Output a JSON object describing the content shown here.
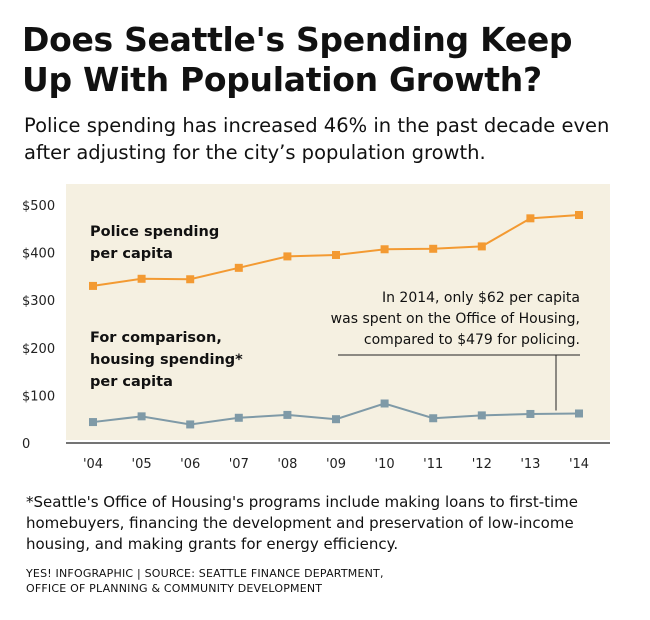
{
  "title": "Does Seattle's Spending Keep Up With Population Growth?",
  "subtitle": "Police spending has increased 46% in the past decade even after adjusting for the city’s population growth.",
  "footnote": "*Seattle's Office of Housing's programs include making loans to first-time homebuyers, financing the development and preservation of low-income housing, and making grants for energy efficiency.",
  "source_line1": "YES! INFOGRAPHIC | SOURCE: SEATTLE FINANCE DEPARTMENT,",
  "source_line2": "OFFICE OF PLANNING & COMMUNITY DEVELOPMENT",
  "colors": {
    "plot_background": "#f5f0e1",
    "police": "#f39a32",
    "housing": "#7f9aa7"
  },
  "chart_data": {
    "type": "line",
    "categories": [
      "'04",
      "'05",
      "'06",
      "'07",
      "'08",
      "'09",
      "'10",
      "'11",
      "'12",
      "'13",
      "'14"
    ],
    "ytick_labels": [
      "$500",
      "$400",
      "$300",
      "$200",
      "$100",
      "0"
    ],
    "yticks": [
      500,
      400,
      300,
      200,
      100,
      0
    ],
    "ylim": [
      0,
      500
    ],
    "series": [
      {
        "key": "police",
        "label_lines": [
          "Police spending",
          "per capita"
        ],
        "values": [
          330,
          345,
          344,
          368,
          392,
          395,
          407,
          408,
          413,
          472,
          479
        ]
      },
      {
        "key": "housing",
        "label_lines": [
          "For comparison,",
          "housing spending*",
          "per capita"
        ],
        "values": [
          44,
          56,
          39,
          53,
          59,
          50,
          83,
          52,
          58,
          61,
          62
        ]
      }
    ],
    "annotation_lines": [
      "In 2014, only $62 per capita",
      "was spent on the Office of Housing,",
      "compared to $479 for policing."
    ]
  }
}
